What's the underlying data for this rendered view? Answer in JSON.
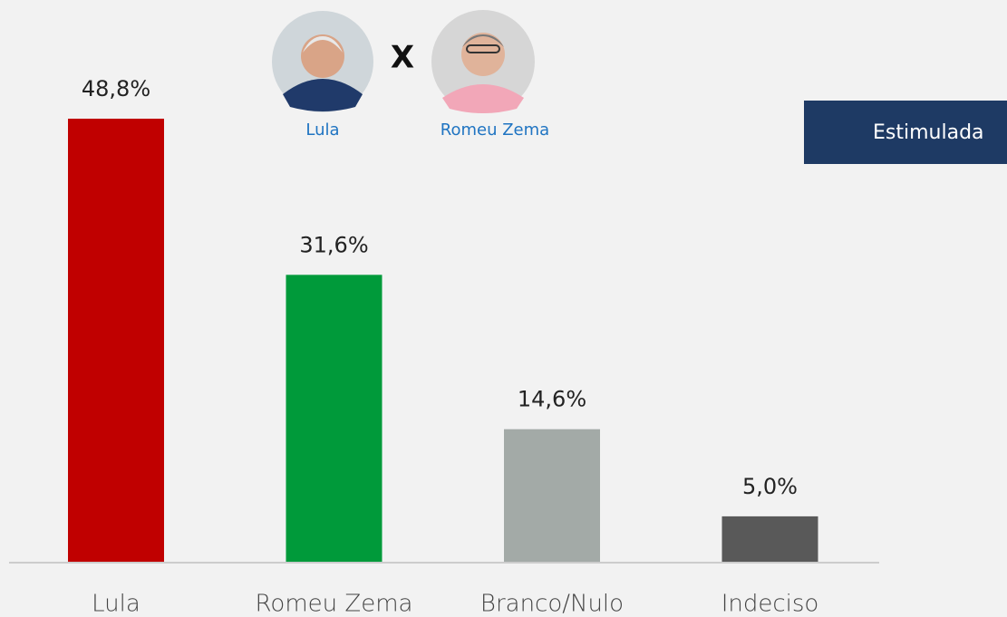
{
  "chart_data": {
    "type": "bar",
    "categories": [
      "Lula",
      "Romeu Zema",
      "Branco/Nulo",
      "Indeciso"
    ],
    "values": [
      48.8,
      31.6,
      14.6,
      5.0
    ],
    "value_labels": [
      "48,8%",
      "31,6%",
      "14,6%",
      "5,0%"
    ],
    "colors": [
      "#c00000",
      "#009a3a",
      "#a3aaa7",
      "#595959"
    ]
  },
  "matchup": {
    "candidates": [
      "Lula",
      "Romeu Zema"
    ],
    "versus": "X"
  },
  "tab": "Estimulada"
}
